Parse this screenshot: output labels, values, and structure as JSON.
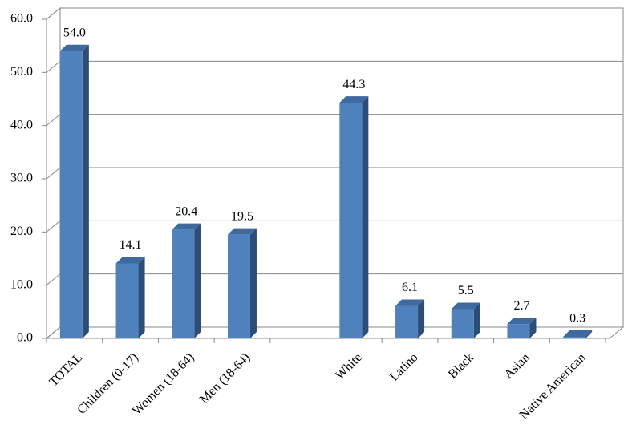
{
  "chart_data": {
    "type": "bar3d",
    "categories": [
      "TOTAL",
      "Children (0-17)",
      "Women (18-64)",
      "Men (18-64)",
      null,
      "White",
      "Latino",
      "Black",
      "Asian",
      "Native American"
    ],
    "values": [
      54.0,
      14.1,
      20.4,
      19.5,
      null,
      44.3,
      6.1,
      5.5,
      2.7,
      0.3
    ],
    "value_labels": [
      "54.0",
      "14.1",
      "20.4",
      "19.5",
      null,
      "44.3",
      "6.1",
      "5.5",
      "2.7",
      "0.3"
    ],
    "color": "#4f81bd",
    "ylim": [
      0,
      60
    ],
    "yticks": [
      {
        "value": 0,
        "label": "0.0"
      },
      {
        "value": 10,
        "label": "10.0"
      },
      {
        "value": 20,
        "label": "20.0"
      },
      {
        "value": 30,
        "label": "30.0"
      },
      {
        "value": 40,
        "label": "40.0"
      },
      {
        "value": 50,
        "label": "50.0"
      },
      {
        "value": 60,
        "label": "60.0"
      }
    ],
    "grid": true
  }
}
